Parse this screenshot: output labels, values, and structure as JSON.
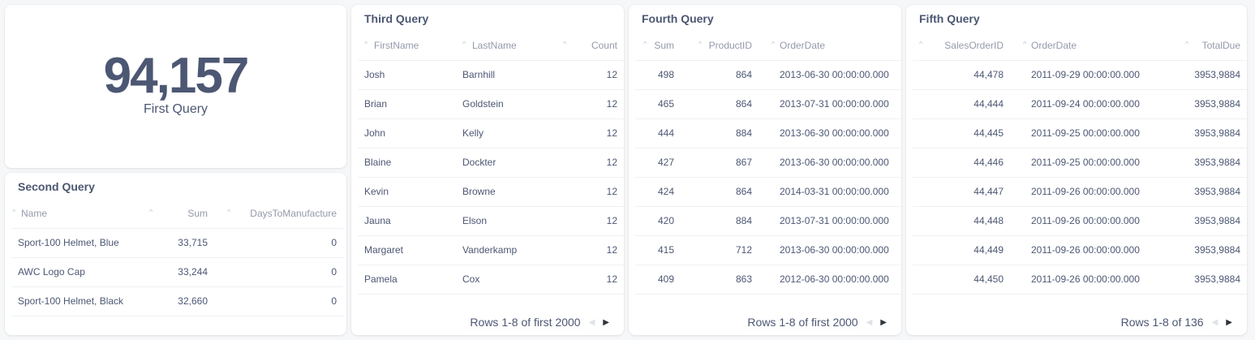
{
  "first": {
    "value": "94,157",
    "title": "First Query"
  },
  "second": {
    "title": "Second Query",
    "columns": [
      "Name",
      "Sum",
      "DaysToManufacture"
    ],
    "rows": [
      [
        "Sport-100 Helmet, Blue",
        "33,715",
        "0"
      ],
      [
        "AWC Logo Cap",
        "33,244",
        "0"
      ],
      [
        "Sport-100 Helmet, Black",
        "32,660",
        "0"
      ]
    ]
  },
  "third": {
    "title": "Third Query",
    "columns": [
      "FirstName",
      "LastName",
      "Count"
    ],
    "rows": [
      [
        "Josh",
        "Barnhill",
        "12"
      ],
      [
        "Brian",
        "Goldstein",
        "12"
      ],
      [
        "John",
        "Kelly",
        "12"
      ],
      [
        "Blaine",
        "Dockter",
        "12"
      ],
      [
        "Kevin",
        "Browne",
        "12"
      ],
      [
        "Jauna",
        "Elson",
        "12"
      ],
      [
        "Margaret",
        "Vanderkamp",
        "12"
      ],
      [
        "Pamela",
        "Cox",
        "12"
      ]
    ],
    "footer": "Rows 1-8 of first 2000"
  },
  "fourth": {
    "title": "Fourth Query",
    "columns": [
      "Sum",
      "ProductID",
      "OrderDate"
    ],
    "rows": [
      [
        "498",
        "864",
        "2013-06-30 00:00:00.000"
      ],
      [
        "465",
        "864",
        "2013-07-31 00:00:00.000"
      ],
      [
        "444",
        "884",
        "2013-06-30 00:00:00.000"
      ],
      [
        "427",
        "867",
        "2013-06-30 00:00:00.000"
      ],
      [
        "424",
        "864",
        "2014-03-31 00:00:00.000"
      ],
      [
        "420",
        "884",
        "2013-07-31 00:00:00.000"
      ],
      [
        "415",
        "712",
        "2013-06-30 00:00:00.000"
      ],
      [
        "409",
        "863",
        "2012-06-30 00:00:00.000"
      ]
    ],
    "footer": "Rows 1-8 of first 2000"
  },
  "fifth": {
    "title": "Fifth Query",
    "columns": [
      "SalesOrderID",
      "OrderDate",
      "TotalDue"
    ],
    "rows": [
      [
        "44,478",
        "2011-09-29 00:00:00.000",
        "3953,9884"
      ],
      [
        "44,444",
        "2011-09-24 00:00:00.000",
        "3953,9884"
      ],
      [
        "44,445",
        "2011-09-25 00:00:00.000",
        "3953,9884"
      ],
      [
        "44,446",
        "2011-09-25 00:00:00.000",
        "3953,9884"
      ],
      [
        "44,447",
        "2011-09-26 00:00:00.000",
        "3953,9884"
      ],
      [
        "44,448",
        "2011-09-26 00:00:00.000",
        "3953,9884"
      ],
      [
        "44,449",
        "2011-09-26 00:00:00.000",
        "3953,9884"
      ],
      [
        "44,450",
        "2011-09-26 00:00:00.000",
        "3953,9884"
      ]
    ],
    "footer": "Rows 1-8 of 136"
  },
  "icons": {
    "sort": "sort-caret-icon",
    "prev": "chevron-left-icon",
    "next": "chevron-right-icon"
  },
  "colors": {
    "text": "#4c5773",
    "muted": "#949aab",
    "border": "#eef0f3"
  }
}
